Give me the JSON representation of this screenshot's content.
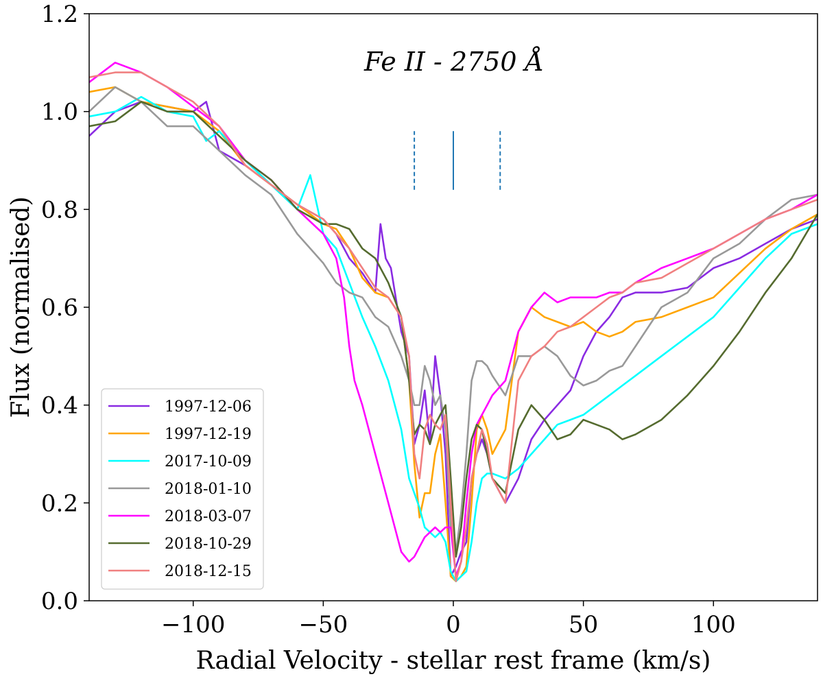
{
  "chart_data": {
    "type": "line",
    "title": "",
    "annotation": "Fe II - 2750 Å",
    "xlabel": "Radial Velocity - stellar rest frame (km/s)",
    "ylabel": "Flux (normalised)",
    "xlim": [
      -140,
      140
    ],
    "ylim": [
      0.0,
      1.2
    ],
    "xticks": [
      -100,
      -50,
      0,
      50,
      100
    ],
    "xtick_labels": [
      "−100",
      "−50",
      "0",
      "50",
      "100"
    ],
    "yticks": [
      0.0,
      0.2,
      0.4,
      0.6,
      0.8,
      1.0,
      1.2
    ],
    "ytick_labels": [
      "0.0",
      "0.2",
      "0.4",
      "0.6",
      "0.8",
      "1.0",
      "1.2"
    ],
    "grid": false,
    "legend_position": "lower-left",
    "markers": {
      "color": "#1f77b4",
      "solid": [
        0
      ],
      "dashed": [
        -15,
        18
      ],
      "y_range": [
        0.84,
        0.96
      ]
    },
    "series": [
      {
        "name": "1997-12-06",
        "color": "#8a2be2",
        "x": [
          -140,
          -130,
          -120,
          -110,
          -100,
          -95,
          -90,
          -80,
          -70,
          -60,
          -50,
          -45,
          -40,
          -35,
          -30,
          -28,
          -26,
          -24,
          -20,
          -17,
          -15,
          -13,
          -11,
          -9,
          -7,
          -5,
          -3,
          -1,
          1,
          3,
          5,
          7,
          9,
          11,
          13,
          15,
          20,
          25,
          30,
          35,
          40,
          45,
          50,
          55,
          60,
          65,
          70,
          80,
          90,
          100,
          110,
          120,
          130,
          140
        ],
        "y": [
          0.95,
          1.0,
          1.02,
          1.01,
          1.0,
          1.02,
          0.92,
          0.89,
          0.85,
          0.81,
          0.78,
          0.75,
          0.7,
          0.67,
          0.63,
          0.77,
          0.7,
          0.68,
          0.55,
          0.5,
          0.32,
          0.36,
          0.43,
          0.32,
          0.5,
          0.42,
          0.3,
          0.05,
          0.07,
          0.1,
          0.12,
          0.25,
          0.3,
          0.33,
          0.3,
          0.25,
          0.2,
          0.25,
          0.33,
          0.37,
          0.4,
          0.43,
          0.5,
          0.55,
          0.58,
          0.62,
          0.63,
          0.63,
          0.64,
          0.68,
          0.7,
          0.73,
          0.76,
          0.78
        ]
      },
      {
        "name": "1997-12-19",
        "color": "#ffa500",
        "x": [
          -140,
          -130,
          -120,
          -110,
          -100,
          -90,
          -80,
          -70,
          -60,
          -50,
          -45,
          -40,
          -35,
          -30,
          -25,
          -20,
          -17,
          -15,
          -13,
          -11,
          -9,
          -7,
          -5,
          -3,
          -1,
          1,
          3,
          5,
          7,
          9,
          11,
          13,
          15,
          20,
          25,
          30,
          35,
          40,
          45,
          50,
          55,
          60,
          65,
          70,
          80,
          90,
          100,
          110,
          120,
          130,
          140
        ],
        "y": [
          1.04,
          1.05,
          1.02,
          1.01,
          1.0,
          0.96,
          0.89,
          0.85,
          0.81,
          0.77,
          0.76,
          0.72,
          0.66,
          0.63,
          0.62,
          0.58,
          0.45,
          0.28,
          0.17,
          0.22,
          0.22,
          0.3,
          0.34,
          0.2,
          0.05,
          0.04,
          0.05,
          0.07,
          0.2,
          0.35,
          0.38,
          0.35,
          0.3,
          0.35,
          0.55,
          0.6,
          0.58,
          0.57,
          0.56,
          0.57,
          0.55,
          0.54,
          0.55,
          0.57,
          0.58,
          0.6,
          0.62,
          0.67,
          0.72,
          0.76,
          0.79
        ]
      },
      {
        "name": "2017-10-09",
        "color": "#00ffff",
        "x": [
          -140,
          -130,
          -120,
          -110,
          -100,
          -95,
          -90,
          -80,
          -70,
          -60,
          -55,
          -50,
          -45,
          -40,
          -35,
          -30,
          -25,
          -20,
          -17,
          -15,
          -13,
          -11,
          -9,
          -7,
          -5,
          -3,
          -1,
          1,
          3,
          5,
          7,
          9,
          11,
          13,
          15,
          20,
          25,
          30,
          35,
          40,
          45,
          50,
          55,
          60,
          65,
          70,
          80,
          90,
          100,
          110,
          120,
          130,
          140
        ],
        "y": [
          0.99,
          1.0,
          1.03,
          1.0,
          0.99,
          0.94,
          0.96,
          0.9,
          0.85,
          0.8,
          0.87,
          0.75,
          0.72,
          0.65,
          0.58,
          0.52,
          0.45,
          0.35,
          0.25,
          0.22,
          0.19,
          0.15,
          0.14,
          0.13,
          0.14,
          0.12,
          0.06,
          0.04,
          0.05,
          0.06,
          0.12,
          0.2,
          0.25,
          0.26,
          0.26,
          0.25,
          0.27,
          0.3,
          0.33,
          0.36,
          0.37,
          0.38,
          0.4,
          0.42,
          0.44,
          0.46,
          0.5,
          0.54,
          0.58,
          0.64,
          0.7,
          0.75,
          0.77
        ]
      },
      {
        "name": "2018-01-10",
        "color": "#999999",
        "x": [
          -140,
          -130,
          -120,
          -110,
          -100,
          -90,
          -80,
          -70,
          -60,
          -55,
          -50,
          -45,
          -40,
          -35,
          -30,
          -25,
          -20,
          -17,
          -15,
          -13,
          -11,
          -9,
          -7,
          -5,
          -3,
          -1,
          1,
          3,
          5,
          7,
          9,
          11,
          13,
          15,
          20,
          25,
          30,
          35,
          40,
          45,
          50,
          55,
          60,
          65,
          70,
          80,
          90,
          100,
          110,
          120,
          130,
          140
        ],
        "y": [
          1.0,
          1.05,
          1.02,
          0.97,
          0.97,
          0.92,
          0.87,
          0.83,
          0.75,
          0.72,
          0.69,
          0.65,
          0.63,
          0.62,
          0.58,
          0.56,
          0.5,
          0.45,
          0.4,
          0.4,
          0.48,
          0.45,
          0.4,
          0.42,
          0.35,
          0.15,
          0.1,
          0.18,
          0.3,
          0.45,
          0.49,
          0.49,
          0.48,
          0.46,
          0.42,
          0.5,
          0.5,
          0.52,
          0.5,
          0.46,
          0.44,
          0.45,
          0.47,
          0.48,
          0.52,
          0.6,
          0.63,
          0.7,
          0.73,
          0.78,
          0.82,
          0.83
        ]
      },
      {
        "name": "2018-03-07",
        "color": "#ff00ff",
        "x": [
          -140,
          -130,
          -120,
          -110,
          -100,
          -90,
          -80,
          -70,
          -60,
          -50,
          -45,
          -42,
          -40,
          -38,
          -35,
          -30,
          -25,
          -20,
          -17,
          -15,
          -13,
          -11,
          -9,
          -7,
          -5,
          -3,
          -1,
          1,
          3,
          5,
          7,
          9,
          11,
          13,
          15,
          20,
          25,
          30,
          35,
          40,
          45,
          50,
          55,
          60,
          65,
          70,
          80,
          90,
          100,
          110,
          120,
          130,
          140
        ],
        "y": [
          1.06,
          1.1,
          1.08,
          1.05,
          1.01,
          0.97,
          0.9,
          0.86,
          0.8,
          0.75,
          0.7,
          0.62,
          0.52,
          0.45,
          0.4,
          0.3,
          0.2,
          0.1,
          0.08,
          0.09,
          0.11,
          0.13,
          0.14,
          0.15,
          0.14,
          0.15,
          0.15,
          0.05,
          0.08,
          0.2,
          0.3,
          0.36,
          0.38,
          0.4,
          0.42,
          0.45,
          0.55,
          0.6,
          0.63,
          0.61,
          0.62,
          0.62,
          0.62,
          0.63,
          0.63,
          0.65,
          0.68,
          0.7,
          0.72,
          0.75,
          0.78,
          0.8,
          0.83
        ]
      },
      {
        "name": "2018-10-29",
        "color": "#556b2f",
        "x": [
          -140,
          -130,
          -120,
          -110,
          -100,
          -90,
          -80,
          -70,
          -60,
          -50,
          -45,
          -40,
          -35,
          -30,
          -25,
          -20,
          -17,
          -15,
          -13,
          -11,
          -9,
          -7,
          -5,
          -3,
          -1,
          1,
          3,
          5,
          7,
          9,
          11,
          13,
          15,
          20,
          25,
          30,
          35,
          40,
          45,
          50,
          55,
          60,
          65,
          70,
          80,
          90,
          100,
          110,
          120,
          130,
          140
        ],
        "y": [
          0.97,
          0.98,
          1.02,
          1.0,
          1.0,
          0.95,
          0.9,
          0.86,
          0.8,
          0.77,
          0.77,
          0.76,
          0.72,
          0.7,
          0.65,
          0.58,
          0.45,
          0.34,
          0.36,
          0.35,
          0.32,
          0.36,
          0.38,
          0.4,
          0.25,
          0.09,
          0.15,
          0.25,
          0.33,
          0.36,
          0.35,
          0.3,
          0.25,
          0.22,
          0.35,
          0.4,
          0.37,
          0.33,
          0.34,
          0.37,
          0.36,
          0.35,
          0.33,
          0.34,
          0.37,
          0.42,
          0.48,
          0.55,
          0.63,
          0.7,
          0.79
        ]
      },
      {
        "name": "2018-12-15",
        "color": "#f08080",
        "x": [
          -140,
          -130,
          -120,
          -110,
          -100,
          -90,
          -80,
          -70,
          -60,
          -50,
          -45,
          -40,
          -35,
          -30,
          -25,
          -20,
          -17,
          -15,
          -13,
          -11,
          -9,
          -7,
          -5,
          -3,
          -1,
          1,
          3,
          5,
          7,
          9,
          11,
          13,
          15,
          20,
          25,
          30,
          35,
          40,
          45,
          50,
          55,
          60,
          65,
          70,
          80,
          90,
          100,
          110,
          120,
          130,
          140
        ],
        "y": [
          1.07,
          1.08,
          1.08,
          1.05,
          1.02,
          0.97,
          0.89,
          0.85,
          0.81,
          0.78,
          0.75,
          0.72,
          0.68,
          0.64,
          0.62,
          0.58,
          0.5,
          0.3,
          0.25,
          0.35,
          0.38,
          0.36,
          0.35,
          0.38,
          0.2,
          0.04,
          0.08,
          0.15,
          0.25,
          0.3,
          0.35,
          0.32,
          0.25,
          0.2,
          0.45,
          0.5,
          0.52,
          0.55,
          0.56,
          0.58,
          0.6,
          0.62,
          0.63,
          0.65,
          0.66,
          0.69,
          0.72,
          0.75,
          0.78,
          0.8,
          0.82
        ]
      }
    ]
  }
}
